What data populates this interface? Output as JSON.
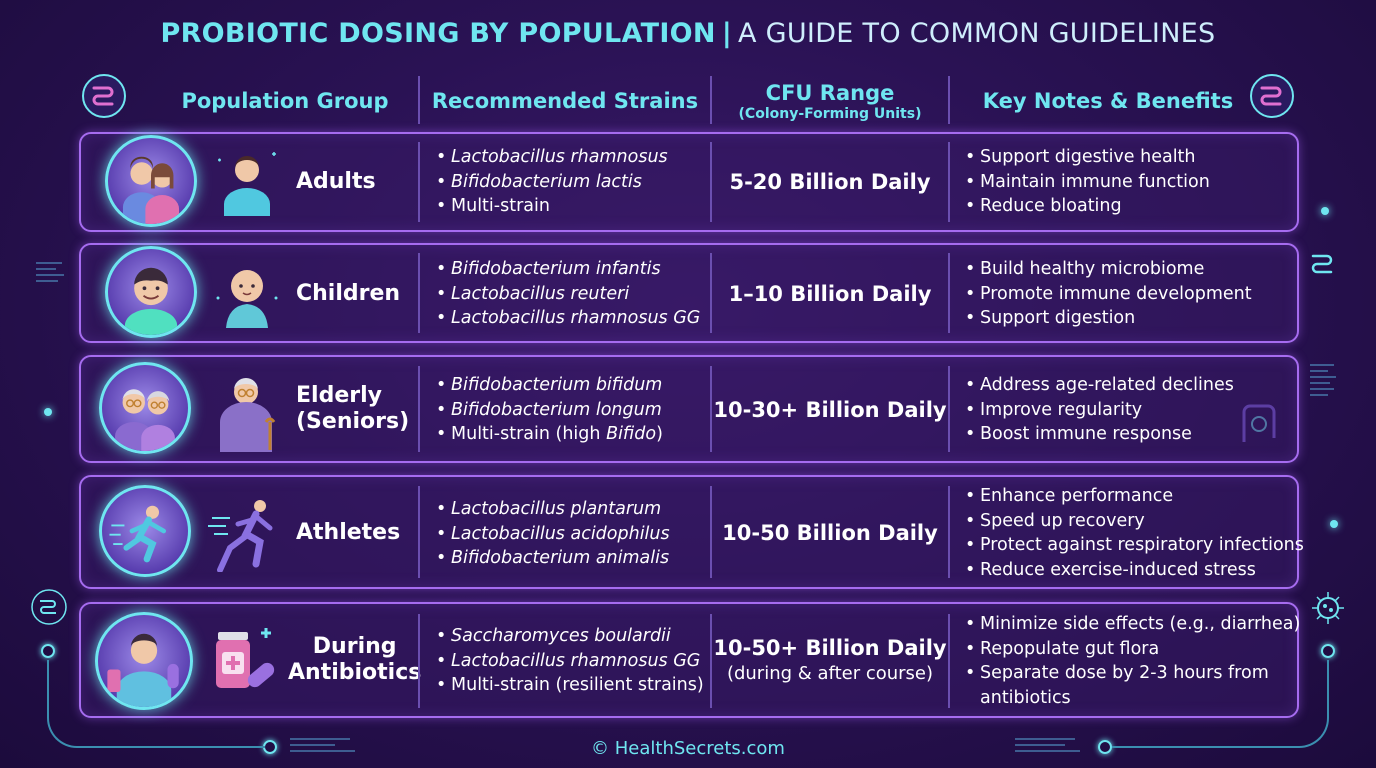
{
  "title": {
    "bold": "PROBIOTIC DOSING BY POPULATION",
    "separator": "|",
    "rest": "A GUIDE TO COMMON GUIDELINES"
  },
  "headers": {
    "population": "Population Group",
    "strains": "Recommended Strains",
    "cfu": "CFU Range",
    "cfu_sub": "(Colony-Forming Units)",
    "notes": "Key Notes & Benefits"
  },
  "rows": [
    {
      "label": "Adults",
      "strains": [
        "Lactobacillus rhamnosus",
        "Bifidobacterium lactis",
        "Multi-strain"
      ],
      "cfu": "5-20 Billion Daily",
      "notes": [
        "Support digestive health",
        "Maintain immune function",
        "Reduce bloating"
      ]
    },
    {
      "label": "Children",
      "strains": [
        "Bifidobacterium infantis",
        "Lactobacillus reuteri",
        "Lactobacillus rhamnosus GG"
      ],
      "cfu": "1–10 Billion Daily",
      "notes": [
        "Build healthy microbiome",
        "Promote immune development",
        "Support digestion"
      ]
    },
    {
      "label_line1": "Elderly",
      "label_line2": "(Seniors)",
      "strains": [
        "Bifidobacterium bifidum",
        "Bifidobacterium longum"
      ],
      "strain_mixed_prefix": "Multi-strain (high ",
      "strain_mixed_italic": "Bifido",
      "strain_mixed_suffix": ")",
      "cfu": "10-30+ Billion Daily",
      "notes": [
        "Address age-related declines",
        "Improve regularity",
        "Boost immune response"
      ]
    },
    {
      "label": "Athletes",
      "strains": [
        "Lactobacillus plantarum",
        "Lactobacillus acidophilus",
        "Bifidobacterium animalis"
      ],
      "cfu": "10-50 Billion Daily",
      "notes": [
        "Enhance performance",
        "Speed up recovery",
        "Protect against respiratory infections",
        "Reduce exercise-induced stress"
      ]
    },
    {
      "label_line1": "During",
      "label_line2": "Antibiotics",
      "strains": [
        "Saccharomyces boulardii",
        "Lactobacillus rhamnosus GG"
      ],
      "strain_plain": "Multi-strain (resilient strains)",
      "cfu": "10-50+ Billion Daily",
      "cfu_sub": "(during & after course)",
      "notes": [
        "Minimize side effects (e.g., diarrhea)",
        "Repopulate gut flora",
        "Separate dose by 2-3 hours from",
        "antibiotics"
      ]
    }
  ],
  "footer": "© HealthSecrets.com",
  "colors": {
    "accent": "#6fe6f0",
    "border": "#a66cf0",
    "background": "#2a1254"
  }
}
